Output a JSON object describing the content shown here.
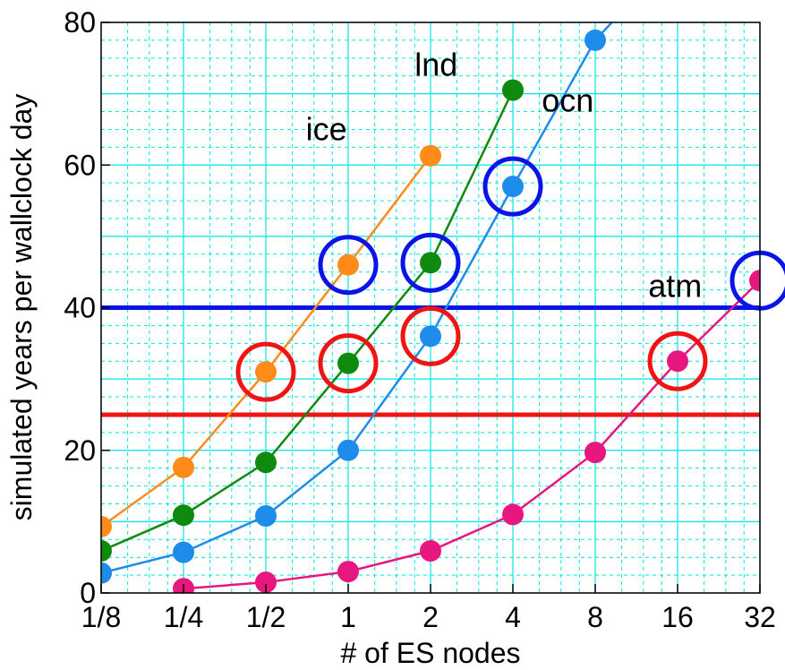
{
  "chart_data": {
    "type": "line",
    "title": "",
    "xlabel": "# of ES nodes",
    "ylabel": "simulated years per wallclock day",
    "x_scale": "log2",
    "x_ticks": [
      "1/8",
      "1/4",
      "1/2",
      "1",
      "2",
      "4",
      "8",
      "16",
      "32"
    ],
    "x_tick_values": [
      0.125,
      0.25,
      0.5,
      1,
      2,
      4,
      8,
      16,
      32
    ],
    "ylim": [
      0,
      80
    ],
    "y_ticks": [
      0,
      20,
      40,
      60,
      80
    ],
    "grid": true,
    "grid_color": "#00e6e6",
    "series": [
      {
        "name": "ice",
        "color": "#ff8c1a",
        "x": [
          0.125,
          0.25,
          0.5,
          1,
          2
        ],
        "y": [
          9.3,
          17.6,
          31.0,
          46.0,
          61.3
        ],
        "circled": [
          {
            "x": 0.5,
            "color": "red"
          },
          {
            "x": 1,
            "color": "blue"
          }
        ]
      },
      {
        "name": "lnd",
        "color": "#0e8a0e",
        "x": [
          0.125,
          0.25,
          0.5,
          1,
          2,
          4
        ],
        "y": [
          5.9,
          10.9,
          18.3,
          32.2,
          46.3,
          70.5
        ],
        "circled": [
          {
            "x": 1,
            "color": "red"
          },
          {
            "x": 2,
            "color": "blue"
          }
        ]
      },
      {
        "name": "ocn",
        "color": "#1e8ceb",
        "x": [
          0.125,
          0.25,
          0.5,
          1,
          2,
          4,
          8,
          9.2
        ],
        "y": [
          2.8,
          5.7,
          10.8,
          20.0,
          36.0,
          57.0,
          77.5,
          80
        ],
        "circled": [
          {
            "x": 2,
            "color": "red"
          },
          {
            "x": 4,
            "color": "blue"
          }
        ]
      },
      {
        "name": "atm",
        "color": "#e8177f",
        "x": [
          0.25,
          0.5,
          1,
          2,
          4,
          8,
          16,
          32
        ],
        "y": [
          0.6,
          1.5,
          3.0,
          5.9,
          11.0,
          19.7,
          32.5,
          43.8
        ],
        "circled": [
          {
            "x": 16,
            "color": "red"
          },
          {
            "x": 32,
            "color": "blue"
          }
        ]
      }
    ],
    "reference_lines": [
      {
        "y": 40,
        "color": "#0a14e6"
      },
      {
        "y": 25,
        "color": "#f01414"
      }
    ]
  }
}
